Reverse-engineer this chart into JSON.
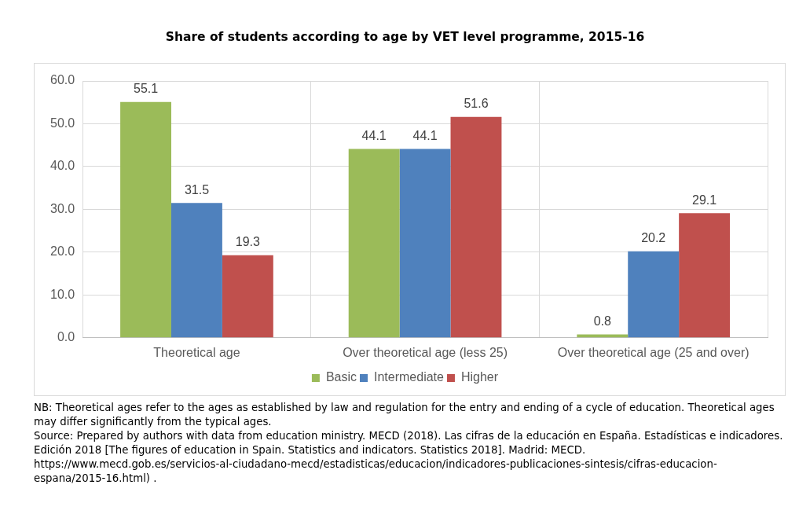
{
  "chart_data": {
    "type": "bar",
    "title": "Share of students according to age by VET level programme, 2015-16",
    "categories": [
      "Theoretical age",
      "Over theoretical age (less 25)",
      "Over theoretical age (25 and over)"
    ],
    "series": [
      {
        "name": "Basic",
        "color": "#9bbb59",
        "values": [
          55.1,
          44.1,
          0.8
        ]
      },
      {
        "name": "Intermediate",
        "color": "#4f81bd",
        "values": [
          31.5,
          44.1,
          20.2
        ]
      },
      {
        "name": "Higher",
        "color": "#c0504d",
        "values": [
          19.3,
          51.6,
          29.1
        ]
      }
    ],
    "ylim": [
      0,
      60
    ],
    "yticks": [
      {
        "value": 0,
        "label": "0.0"
      },
      {
        "value": 10,
        "label": "10.0"
      },
      {
        "value": 20,
        "label": "20.0"
      },
      {
        "value": 30,
        "label": "30.0"
      },
      {
        "value": 40,
        "label": "40.0"
      },
      {
        "value": 50,
        "label": "50.0"
      },
      {
        "value": 60,
        "label": "60.0"
      }
    ],
    "grid": true,
    "legend": "bottom",
    "data_labels": true,
    "annotations": [
      "NB: Theoretical ages refer to the ages as established by law and regulation for the entry and ending of a cycle of education. Theoretical ages may differ significantly from the typical ages.",
      "Source: Prepared by authors with data from education ministry. MECD (2018). Las cifras de la educación en España. Estadísticas e indicadores. Edición 2018 [The figures of education in Spain. Statistics and indicators. Statistics 2018]. Madrid: MECD.",
      "https://www.mecd.gob.es/servicios-al-ciudadano-mecd/estadisticas/educacion/indicadores-publicaciones-sintesis/cifras-educacion-espana/2015-16.html) ."
    ]
  }
}
